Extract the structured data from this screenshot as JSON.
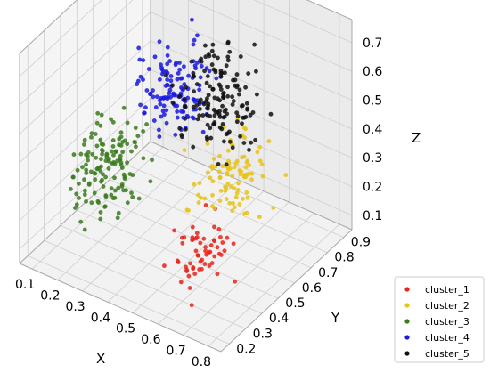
{
  "chart_data": {
    "type": "scatter3d",
    "axes": {
      "x": {
        "label": "X",
        "ticks": [
          "0.1",
          "0.2",
          "0.3",
          "0.4",
          "0.5",
          "0.6",
          "0.7",
          "0.8"
        ],
        "range": [
          0.05,
          0.85
        ]
      },
      "y": {
        "label": "Y",
        "ticks": [
          "0.2",
          "0.3",
          "0.4",
          "0.5",
          "0.6",
          "0.7",
          "0.8",
          "0.9"
        ],
        "range": [
          0.15,
          0.95
        ]
      },
      "z": {
        "label": "Z",
        "ticks": [
          "0.1",
          "0.2",
          "0.3",
          "0.4",
          "0.5",
          "0.6",
          "0.7"
        ],
        "range": [
          0.05,
          0.78
        ]
      }
    },
    "grid": true,
    "legend_position": "bottom-right",
    "series": [
      {
        "name": "cluster_1",
        "color": "#e8241c",
        "center": [
          0.67,
          0.3,
          0.25
        ],
        "spread": [
          0.09,
          0.1,
          0.09
        ],
        "count": 60
      },
      {
        "name": "cluster_2",
        "color": "#e8c318",
        "center": [
          0.62,
          0.58,
          0.33
        ],
        "spread": [
          0.09,
          0.14,
          0.12
        ],
        "count": 95
      },
      {
        "name": "cluster_3",
        "color": "#3b7a1e",
        "center": [
          0.22,
          0.42,
          0.28
        ],
        "spread": [
          0.09,
          0.14,
          0.13
        ],
        "count": 140
      },
      {
        "name": "cluster_4",
        "color": "#1a1ae0",
        "center": [
          0.32,
          0.68,
          0.48
        ],
        "spread": [
          0.09,
          0.13,
          0.12
        ],
        "count": 130
      },
      {
        "name": "cluster_5",
        "color": "#111111",
        "center": [
          0.5,
          0.68,
          0.52
        ],
        "spread": [
          0.1,
          0.13,
          0.13
        ],
        "count": 150
      }
    ]
  }
}
